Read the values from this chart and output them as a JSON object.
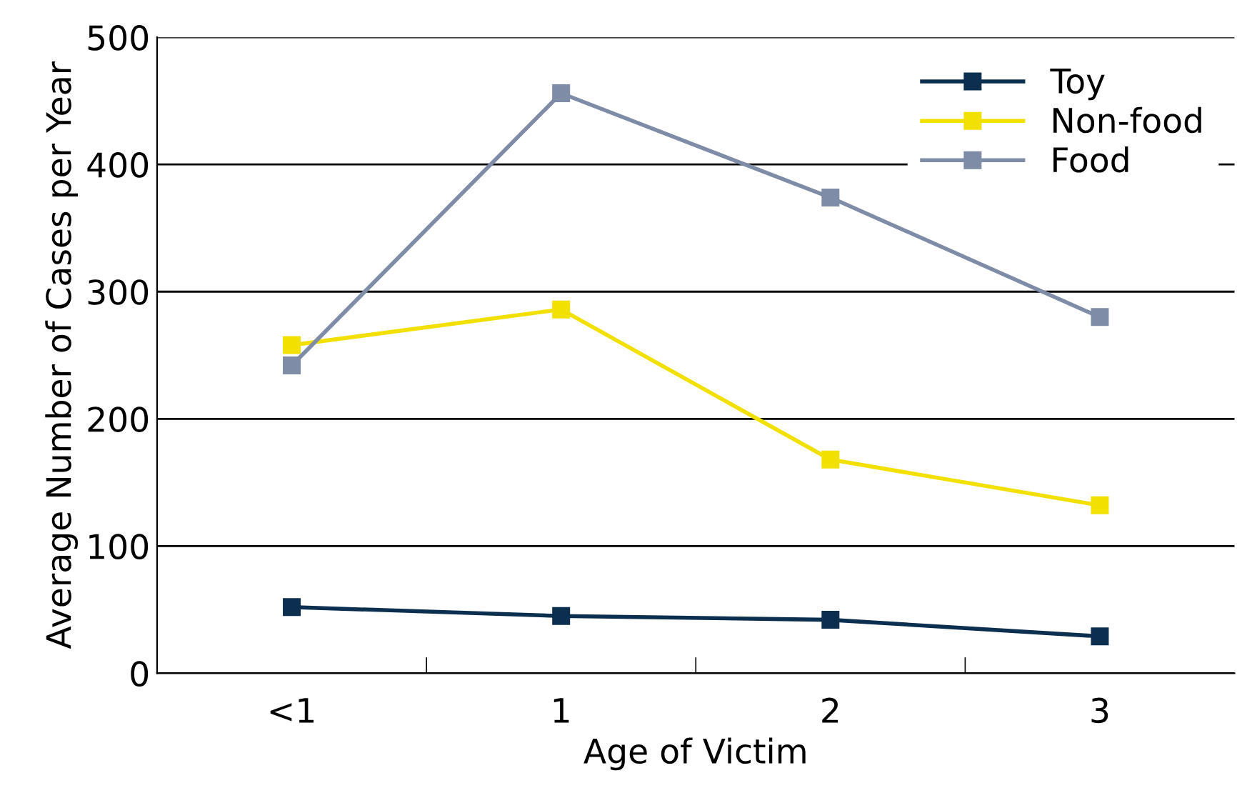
{
  "chart_data": {
    "type": "line",
    "xlabel": "Age of Victim",
    "ylabel": "Average Number of Cases per Year",
    "categories": [
      "<1",
      "1",
      "2",
      "3"
    ],
    "series": [
      {
        "name": "Toy",
        "color": "#0d2f4f",
        "values": [
          52,
          45,
          42,
          29
        ]
      },
      {
        "name": "Non-food",
        "color": "#f2e000",
        "values": [
          258,
          286,
          168,
          132
        ]
      },
      {
        "name": "Food",
        "color": "#7f8ca8",
        "values": [
          242,
          456,
          374,
          280
        ]
      }
    ],
    "ylim": [
      0,
      500
    ],
    "yticks": [
      0,
      100,
      200,
      300,
      400,
      500
    ],
    "grid": "y",
    "legend": "top right",
    "marker": "square",
    "line_style": "solid"
  }
}
